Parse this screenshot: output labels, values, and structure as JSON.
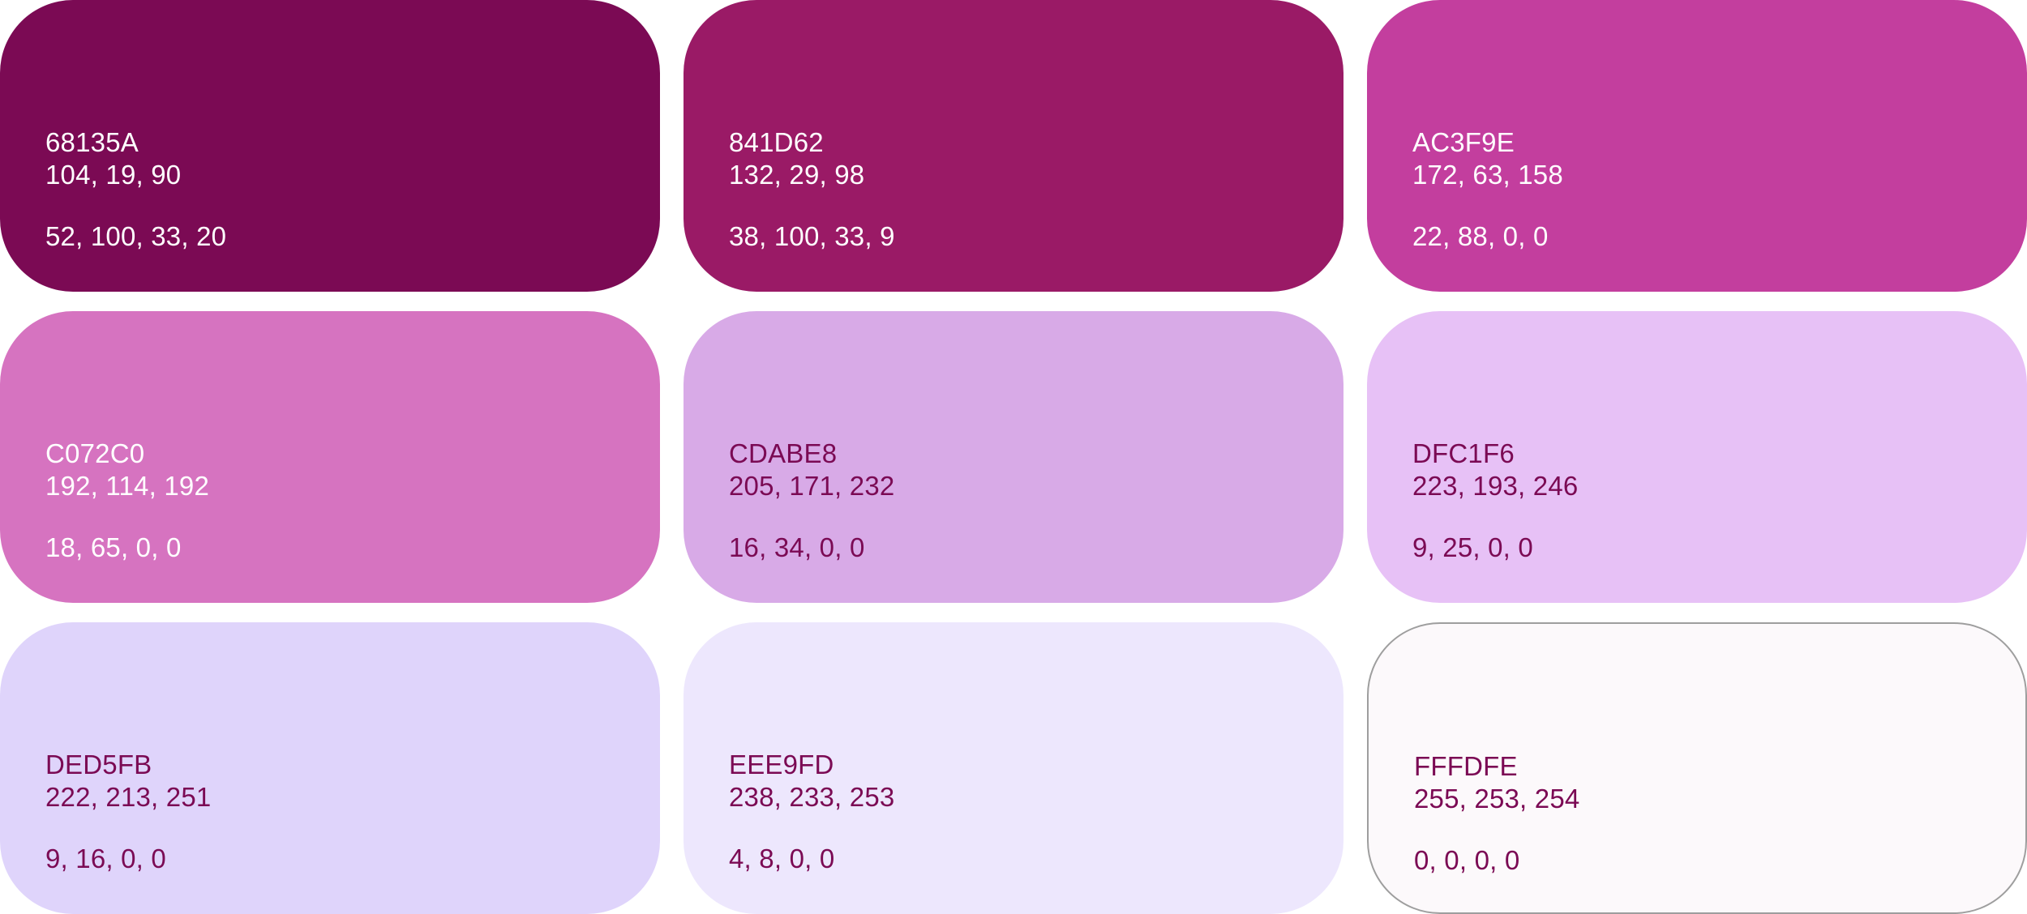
{
  "swatches": [
    {
      "hex": "68135A",
      "rgb": "104, 19, 90",
      "cmyk": "52, 100, 33, 20",
      "fill": "#7B0A54",
      "text_color": "#FFFFFF"
    },
    {
      "hex": "841D62",
      "rgb": "132, 29, 98",
      "cmyk": "38, 100, 33, 9",
      "fill": "#9A1A66",
      "text_color": "#FFFFFF"
    },
    {
      "hex": "AC3F9E",
      "rgb": "172, 63, 158",
      "cmyk": "22, 88, 0, 0",
      "fill": "#C33E9E",
      "text_color": "#FFFFFF"
    },
    {
      "hex": "C072C0",
      "rgb": "192, 114, 192",
      "cmyk": "18, 65, 0, 0",
      "fill": "#D673C0",
      "text_color": "#FFFFFF"
    },
    {
      "hex": "CDABE8",
      "rgb": "205, 171, 232",
      "cmyk": "16, 34, 0, 0",
      "fill": "#D8AAE7",
      "text_color": "#7B0A54"
    },
    {
      "hex": "DFC1F6",
      "rgb": "223, 193, 246",
      "cmyk": "9, 25, 0, 0",
      "fill": "#E7C1F6",
      "text_color": "#7B0A54"
    },
    {
      "hex": "DED5FB",
      "rgb": "222, 213, 251",
      "cmyk": "9, 16, 0, 0",
      "fill": "#DFD4FB",
      "text_color": "#7B0A54"
    },
    {
      "hex": "EEE9FD",
      "rgb": "238, 233, 253",
      "cmyk": "4, 8, 0, 0",
      "fill": "#EDE7FD",
      "text_color": "#7B0A54"
    },
    {
      "hex": "FFFDFE",
      "rgb": "255, 253, 254",
      "cmyk": "0, 0, 0, 0",
      "fill": "#FCF9FB",
      "text_color": "#7B0A54",
      "border": "#9E9E9E"
    }
  ]
}
